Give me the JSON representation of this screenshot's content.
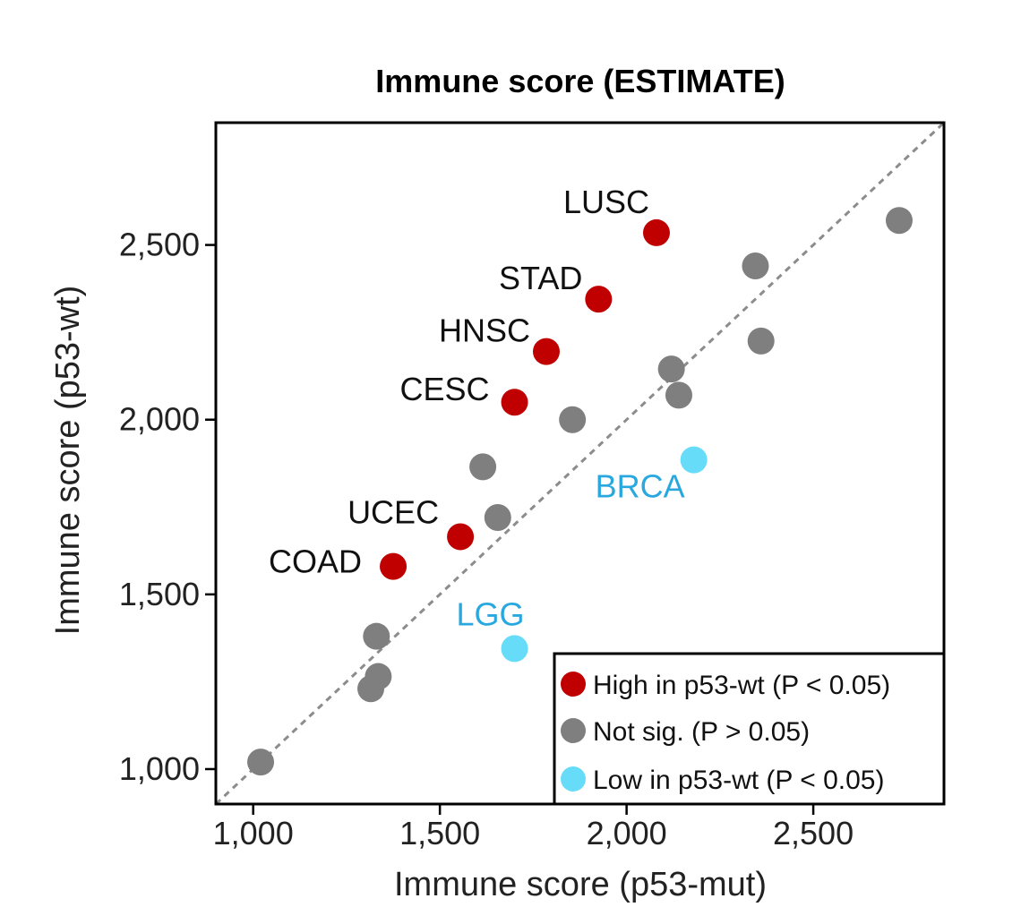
{
  "chart_data": {
    "type": "scatter",
    "title": "Immune score (ESTIMATE)",
    "xlabel": "Immune score (p53-mut)",
    "ylabel": "Immune score (p53-wt)",
    "xlim": [
      900,
      2850
    ],
    "ylim": [
      900,
      2850
    ],
    "xticks": [
      1000,
      1500,
      2000,
      2500
    ],
    "xtick_labels": [
      "1,000",
      "1,500",
      "2,000",
      "2,500"
    ],
    "yticks": [
      1000,
      1500,
      2000,
      2500
    ],
    "ytick_labels": [
      "1,000",
      "1,500",
      "2,000",
      "2,500"
    ],
    "reference_line": "y = x (dashed)",
    "grid": false,
    "legend_position": "bottom-right",
    "colors": {
      "high": "#c00000",
      "not_sig": "#7f7f7f",
      "low": "#66dcf8",
      "low_label": "#29a8e0"
    },
    "series": [
      {
        "name": "High in p53-wt  (P < 0.05)",
        "key": "high",
        "points": [
          {
            "x": 2080,
            "y": 2535,
            "label": "LUSC"
          },
          {
            "x": 1925,
            "y": 2345,
            "label": "STAD"
          },
          {
            "x": 1785,
            "y": 2195,
            "label": "HNSC"
          },
          {
            "x": 1700,
            "y": 2050,
            "label": "CESC"
          },
          {
            "x": 1555,
            "y": 1665,
            "label": "UCEC"
          },
          {
            "x": 1375,
            "y": 1580,
            "label": "COAD"
          }
        ]
      },
      {
        "name": "Not sig. (P > 0.05)",
        "key": "not_sig",
        "points": [
          {
            "x": 2730,
            "y": 2570
          },
          {
            "x": 2345,
            "y": 2440
          },
          {
            "x": 2360,
            "y": 2225
          },
          {
            "x": 2120,
            "y": 2145
          },
          {
            "x": 2140,
            "y": 2070
          },
          {
            "x": 1855,
            "y": 2000
          },
          {
            "x": 1615,
            "y": 1865
          },
          {
            "x": 1655,
            "y": 1720
          },
          {
            "x": 1330,
            "y": 1380
          },
          {
            "x": 1335,
            "y": 1265
          },
          {
            "x": 1315,
            "y": 1230
          },
          {
            "x": 1020,
            "y": 1020
          }
        ]
      },
      {
        "name": "Low in p53-wt  (P < 0.05)",
        "key": "low",
        "points": [
          {
            "x": 2180,
            "y": 1885,
            "label": "BRCA"
          },
          {
            "x": 1700,
            "y": 1345,
            "label": "LGG"
          }
        ]
      }
    ]
  }
}
